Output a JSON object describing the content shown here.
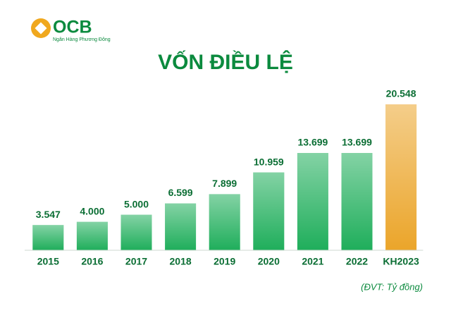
{
  "logo": {
    "name": "OCB",
    "tagline": "Ngân Hàng Phương Đông"
  },
  "chart_data": {
    "type": "bar",
    "title": "VỐN ĐIỀU LỆ",
    "categories": [
      "2015",
      "2016",
      "2017",
      "2018",
      "2019",
      "2020",
      "2021",
      "2022",
      "KH2023"
    ],
    "values": [
      3547,
      4000,
      5000,
      6599,
      7899,
      10959,
      13699,
      13699,
      20548
    ],
    "value_labels": [
      "3.547",
      "4.000",
      "5.000",
      "6.599",
      "7.899",
      "10.959",
      "13.699",
      "13.699",
      "20.548"
    ],
    "colors": [
      "#1fae5b",
      "#1fae5b",
      "#1fae5b",
      "#1fae5b",
      "#1fae5b",
      "#1fae5b",
      "#1fae5b",
      "#1fae5b",
      "#eba52a"
    ],
    "note": "(ĐVT: Tỷ đồng)"
  }
}
